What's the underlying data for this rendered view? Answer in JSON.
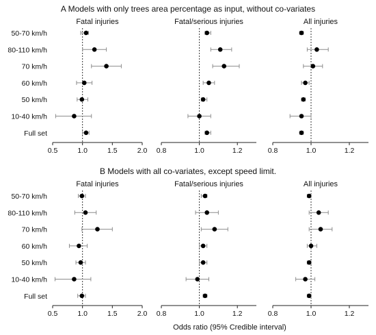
{
  "chart_data": [
    {
      "type": "forest",
      "title": "A Models with only trees area percentage as input, without co-variates",
      "categories": [
        "50-70 km/h",
        "80-110 km/h",
        "70 km/h",
        "60 km/h",
        "50 km/h",
        "10-40 km/h",
        "Full set"
      ],
      "panels": [
        {
          "name": "Fatal injuries",
          "xlim": [
            0.5,
            2.0
          ],
          "xticks": [
            0.5,
            1.0,
            1.5,
            2.0
          ],
          "tick_labels": [
            "0.5",
            "1.0",
            "1.5",
            "2.0"
          ],
          "reference": 1.0,
          "estimates": [
            1.06,
            1.2,
            1.4,
            1.03,
            0.99,
            0.86,
            1.06
          ],
          "lower": [
            0.97,
            1.0,
            1.15,
            0.9,
            0.91,
            0.55,
            1.0
          ],
          "upper": [
            1.1,
            1.4,
            1.65,
            1.16,
            1.09,
            1.15,
            1.11
          ]
        },
        {
          "name": "Fatal/serious injuries",
          "xlim": [
            0.8,
            1.3
          ],
          "xticks": [
            0.8,
            1.0,
            1.2
          ],
          "tick_labels": [
            "0.8",
            "1.0",
            "1.2"
          ],
          "reference": 1.0,
          "estimates": [
            1.04,
            1.11,
            1.13,
            1.05,
            1.02,
            1.0,
            1.04
          ],
          "lower": [
            1.03,
            1.06,
            1.07,
            1.02,
            1.01,
            0.94,
            1.03
          ],
          "upper": [
            1.06,
            1.17,
            1.21,
            1.08,
            1.04,
            1.06,
            1.06
          ]
        },
        {
          "name": "All injuries",
          "xlim": [
            0.8,
            1.3
          ],
          "xticks": [
            0.8,
            1.0,
            1.2
          ],
          "tick_labels": [
            "0.8",
            "1.0",
            "1.2"
          ],
          "reference": 1.0,
          "estimates": [
            0.95,
            1.03,
            1.01,
            0.97,
            0.96,
            0.95,
            0.95
          ],
          "lower": [
            0.94,
            0.98,
            0.96,
            0.95,
            0.95,
            0.89,
            0.94
          ],
          "upper": [
            0.96,
            1.09,
            1.06,
            0.99,
            0.97,
            1.0,
            0.96
          ]
        }
      ]
    },
    {
      "type": "forest",
      "title": "B Models with all co-variates, except speed limit.",
      "categories": [
        "50-70 km/h",
        "80-110 km/h",
        "70 km/h",
        "60 km/h",
        "50 km/h",
        "10-40 km/h",
        "Full set"
      ],
      "xlabel": "Odds ratio (95% Credible interval)",
      "panels": [
        {
          "name": "Fatal injuries",
          "xlim": [
            0.5,
            2.0
          ],
          "xticks": [
            0.5,
            1.0,
            1.5,
            2.0
          ],
          "tick_labels": [
            "0.5",
            "1.0",
            "1.5",
            "2.0"
          ],
          "reference": 1.0,
          "estimates": [
            0.99,
            1.05,
            1.25,
            0.94,
            0.97,
            0.86,
            0.99
          ],
          "lower": [
            0.93,
            0.87,
            0.99,
            0.78,
            0.89,
            0.54,
            0.92
          ],
          "upper": [
            1.05,
            1.23,
            1.5,
            1.08,
            1.05,
            1.14,
            1.05
          ]
        },
        {
          "name": "Fatal/serious injuries",
          "xlim": [
            0.8,
            1.3
          ],
          "xticks": [
            0.8,
            1.0,
            1.2
          ],
          "tick_labels": [
            "0.8",
            "1.0",
            "1.2"
          ],
          "reference": 1.0,
          "estimates": [
            1.03,
            1.04,
            1.08,
            1.02,
            1.02,
            0.99,
            1.03
          ],
          "lower": [
            1.01,
            0.98,
            1.01,
            1.0,
            1.0,
            0.93,
            1.02
          ],
          "upper": [
            1.04,
            1.1,
            1.15,
            1.04,
            1.04,
            1.05,
            1.04
          ]
        },
        {
          "name": "All injuries",
          "xlim": [
            0.8,
            1.3
          ],
          "xticks": [
            0.8,
            1.0,
            1.2
          ],
          "tick_labels": [
            "0.8",
            "1.0",
            "1.2"
          ],
          "reference": 1.0,
          "estimates": [
            0.99,
            1.04,
            1.05,
            1.0,
            0.99,
            0.97,
            0.99
          ],
          "lower": [
            0.98,
            0.99,
            0.99,
            0.98,
            0.98,
            0.92,
            0.98
          ],
          "upper": [
            1.0,
            1.09,
            1.11,
            1.03,
            1.0,
            1.02,
            1.0
          ]
        }
      ]
    }
  ],
  "colors": {
    "point": "#000000",
    "whisker": "#8c8c8c",
    "axis": "#222222",
    "reference_line": "#333333"
  }
}
